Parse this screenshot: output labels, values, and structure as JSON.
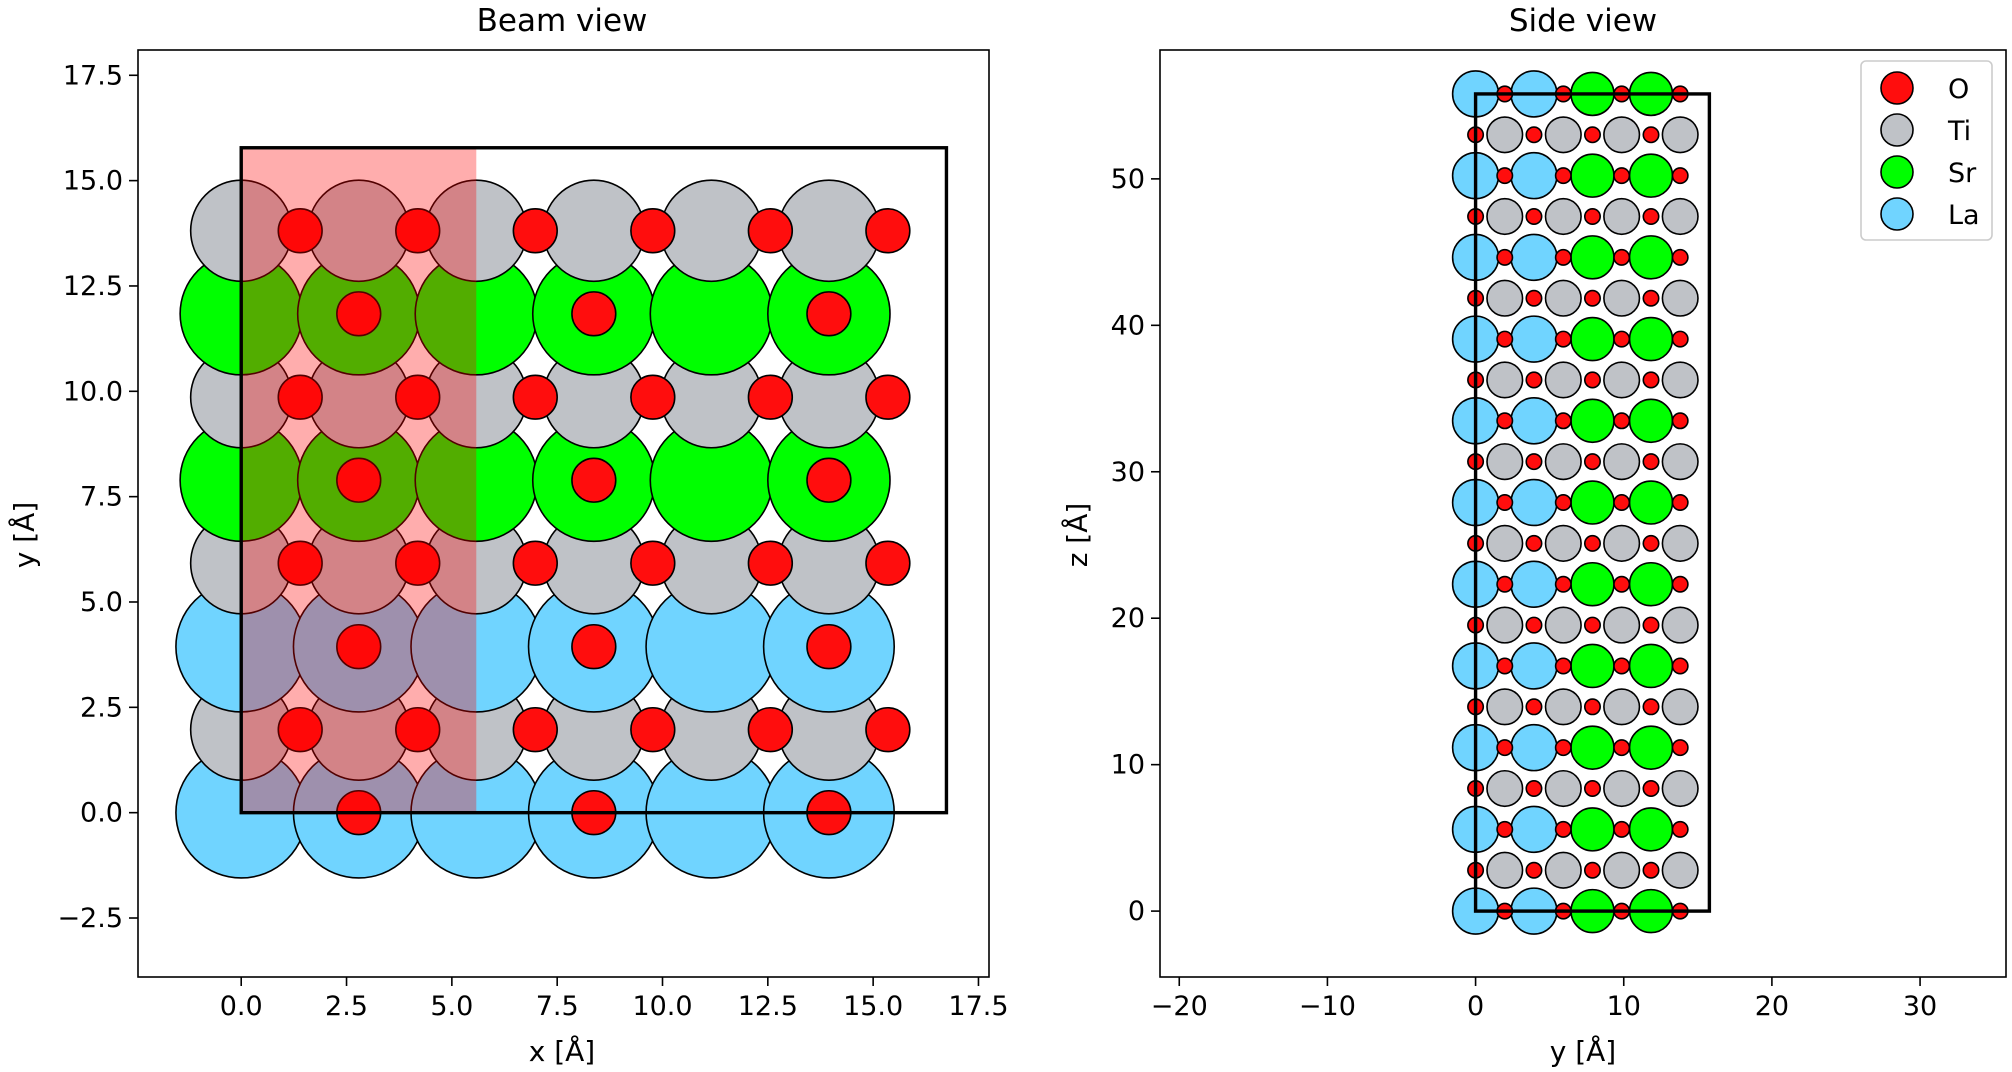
{
  "figure": {
    "background": "#ffffff"
  },
  "species_colors": {
    "O": "#ff0d0d",
    "Ti": "#bfc2c7",
    "Sr": "#00ff00",
    "La": "#70d4ff"
  },
  "chart_data": [
    {
      "type": "scatter",
      "title": "Beam view",
      "xlabel": "x [Å]",
      "ylabel": "y [Å]",
      "xlim": [
        -2.45,
        17.75
      ],
      "ylim": [
        -3.9,
        18.1
      ],
      "xticks": [
        0.0,
        2.5,
        5.0,
        7.5,
        10.0,
        12.5,
        15.0,
        17.5
      ],
      "xtick_labels": [
        "0.0",
        "2.5",
        "5.0",
        "7.5",
        "10.0",
        "12.5",
        "15.0",
        "17.5"
      ],
      "yticks": [
        -2.5,
        0.0,
        2.5,
        5.0,
        7.5,
        10.0,
        12.5,
        15.0,
        17.5
      ],
      "ytick_labels": [
        "−2.5",
        "0.0",
        "2.5",
        "5.0",
        "7.5",
        "10.0",
        "12.5",
        "15.0",
        "17.5"
      ],
      "grid": false,
      "cell_box": {
        "x": [
          0,
          16.74
        ],
        "y": [
          0,
          15.78
        ]
      },
      "highlight_region": {
        "x": [
          0,
          5.58
        ],
        "y": [
          0,
          15.78
        ],
        "color": "#ff0000",
        "opacity": 0.32
      },
      "species_radius": {
        "La": 1.55,
        "Sr": 1.45,
        "Ti": 1.2,
        "O": 0.52
      },
      "rows": [
        {
          "y": 0.0,
          "species": "La",
          "x": [
            0.0,
            2.79,
            5.58,
            8.37,
            11.16,
            13.95
          ],
          "o_x": [
            2.79,
            8.37,
            13.95
          ]
        },
        {
          "y": 1.97,
          "species": "Ti",
          "x": [
            0.0,
            2.79,
            5.58,
            8.37,
            11.16,
            13.95
          ],
          "o_x": [
            1.4,
            4.19,
            6.98,
            9.77,
            12.56,
            15.35
          ]
        },
        {
          "y": 3.94,
          "species": "La",
          "x": [
            0.0,
            2.79,
            5.58,
            8.37,
            11.16,
            13.95
          ],
          "o_x": [
            2.79,
            8.37,
            13.95
          ]
        },
        {
          "y": 5.92,
          "species": "Ti",
          "x": [
            0.0,
            2.79,
            5.58,
            8.37,
            11.16,
            13.95
          ],
          "o_x": [
            1.4,
            4.19,
            6.98,
            9.77,
            12.56,
            15.35
          ]
        },
        {
          "y": 7.89,
          "species": "Sr",
          "x": [
            0.0,
            2.79,
            5.58,
            8.37,
            11.16,
            13.95
          ],
          "o_x": [
            2.79,
            8.37,
            13.95
          ]
        },
        {
          "y": 9.86,
          "species": "Ti",
          "x": [
            0.0,
            2.79,
            5.58,
            8.37,
            11.16,
            13.95
          ],
          "o_x": [
            1.4,
            4.19,
            6.98,
            9.77,
            12.56,
            15.35
          ]
        },
        {
          "y": 11.84,
          "species": "Sr",
          "x": [
            0.0,
            2.79,
            5.58,
            8.37,
            11.16,
            13.95
          ],
          "o_x": [
            2.79,
            8.37,
            13.95
          ]
        },
        {
          "y": 13.81,
          "species": "Ti",
          "x": [
            0.0,
            2.79,
            5.58,
            8.37,
            11.16,
            13.95
          ],
          "o_x": [
            1.4,
            4.19,
            6.98,
            9.77,
            12.56,
            15.35
          ]
        }
      ]
    },
    {
      "type": "scatter",
      "title": "Side view",
      "xlabel": "y [Å]",
      "ylabel": "z [Å]",
      "xlim": [
        -21.3,
        35.8
      ],
      "ylim": [
        -4.5,
        58.8
      ],
      "xticks": [
        -20,
        -10,
        0,
        10,
        20,
        30
      ],
      "xtick_labels": [
        "−20",
        "−10",
        "0",
        "10",
        "20",
        "30"
      ],
      "yticks": [
        0,
        10,
        20,
        30,
        40,
        50
      ],
      "ytick_labels": [
        "0",
        "10",
        "20",
        "30",
        "40",
        "50"
      ],
      "grid": false,
      "cell_box": {
        "x": [
          0,
          15.78
        ],
        "y": [
          0,
          55.8
        ]
      },
      "species_radius": {
        "La": 1.55,
        "Sr": 1.45,
        "Ti": 1.2,
        "O": 0.52
      },
      "legend": {
        "position": "top-right",
        "entries": [
          {
            "label": "O",
            "species": "O"
          },
          {
            "label": "Ti",
            "species": "Ti"
          },
          {
            "label": "Sr",
            "species": "Sr"
          },
          {
            "label": "La",
            "species": "La"
          }
        ]
      },
      "layers": {
        "z_start": 0.0,
        "z_step": 2.79,
        "count": 21,
        "a_site_y": [
          0.0,
          3.94,
          7.89,
          11.84
        ],
        "a_site_species": [
          "La",
          "La",
          "Sr",
          "Sr"
        ],
        "b_site_y": [
          1.97,
          5.92,
          9.86,
          13.81
        ],
        "b_site_species": "Ti",
        "a_layer_o_y": [
          1.97,
          5.92,
          9.86,
          13.81
        ],
        "b_layer_o_y": [
          0.0,
          3.94,
          7.89,
          11.84
        ]
      }
    }
  ]
}
